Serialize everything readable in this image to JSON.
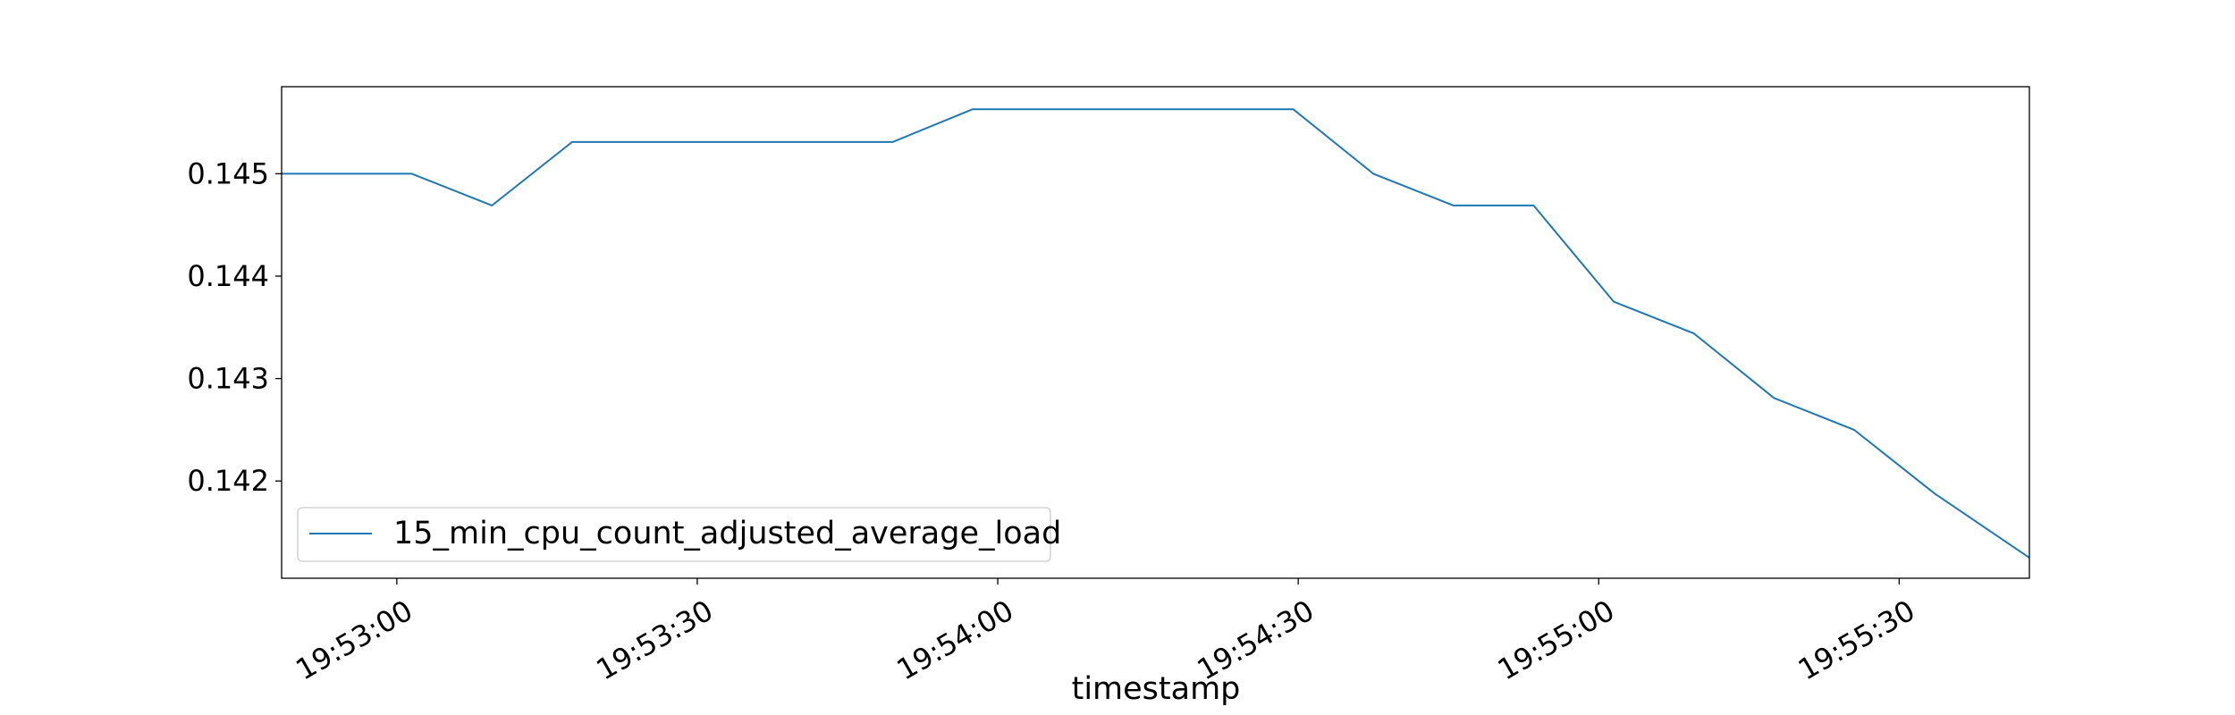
{
  "chart_data": {
    "type": "line",
    "title": "",
    "xlabel": "timestamp",
    "ylabel": "",
    "x_unit": "seconds since 19:53:00",
    "xlim": [
      -11.5,
      163
    ],
    "ylim": [
      0.14105,
      0.14585
    ],
    "x_ticks": [
      {
        "value": 0,
        "label": "19:53:00"
      },
      {
        "value": 30,
        "label": "19:53:30"
      },
      {
        "value": 60,
        "label": "19:54:00"
      },
      {
        "value": 90,
        "label": "19:54:30"
      },
      {
        "value": 120,
        "label": "19:55:00"
      },
      {
        "value": 150,
        "label": "19:55:30"
      }
    ],
    "y_ticks": [
      {
        "value": 0.142,
        "label": "0.142"
      },
      {
        "value": 0.143,
        "label": "0.143"
      },
      {
        "value": 0.144,
        "label": "0.144"
      },
      {
        "value": 0.145,
        "label": "0.145"
      }
    ],
    "grid": false,
    "legend": {
      "position": "lower-left"
    },
    "series": [
      {
        "name": "15_min_cpu_count_adjusted_average_load",
        "color": "#1f77b4",
        "x": [
          -11.5,
          1.5,
          9.5,
          17.5,
          25.5,
          33.5,
          41.5,
          49.5,
          57.5,
          65.5,
          73.5,
          81.5,
          89.5,
          97.5,
          105.5,
          113.5,
          121.5,
          129.5,
          137.5,
          145.5,
          153.5,
          163
        ],
        "y": [
          0.145,
          0.145,
          0.14469,
          0.14531,
          0.14531,
          0.14531,
          0.14531,
          0.14531,
          0.14563,
          0.14563,
          0.14563,
          0.14563,
          0.14563,
          0.145,
          0.14469,
          0.14469,
          0.14375,
          0.14344,
          0.14281,
          0.1425,
          0.14188,
          0.14125
        ]
      }
    ]
  }
}
